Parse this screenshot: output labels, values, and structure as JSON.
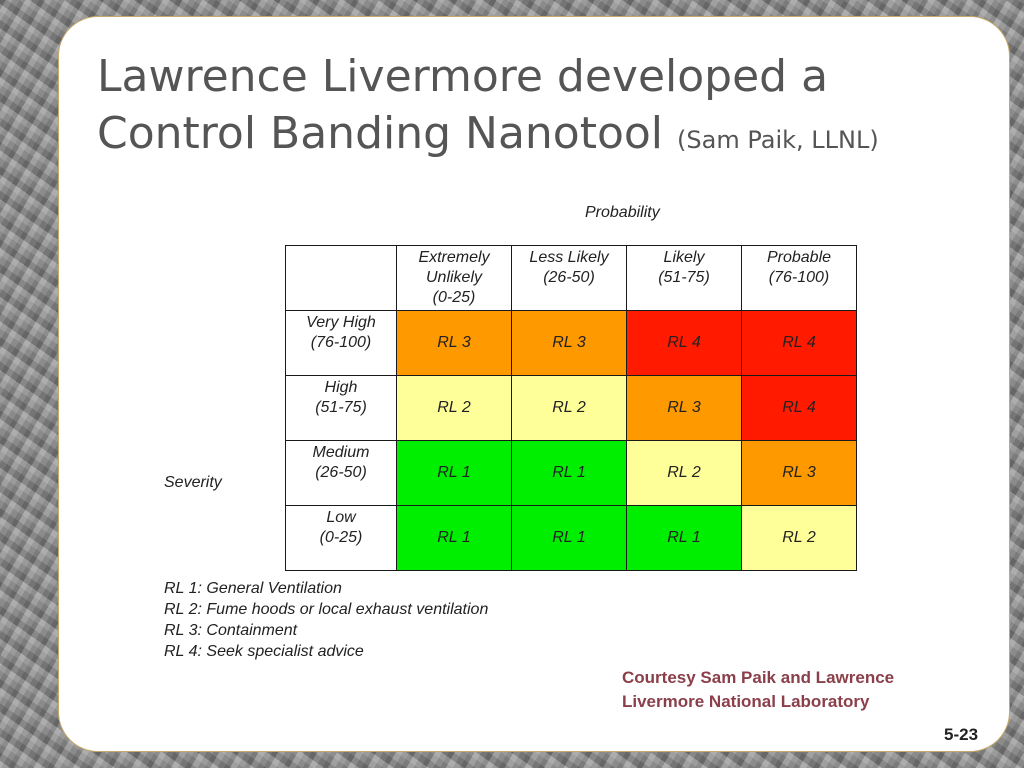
{
  "slide": {
    "title_main": "Lawrence Livermore developed a Control Banding Nanotool",
    "title_sub": "(Sam Paik, LLNL)",
    "page_number": "5-23",
    "courtesy": "Courtesy Sam Paik and Lawrence Livermore National Laboratory"
  },
  "matrix": {
    "probability_label": "Probability",
    "severity_label": "Severity",
    "columns": [
      {
        "line1": "Extremely",
        "line2": "Unlikely",
        "line3": "(0-25)"
      },
      {
        "line1": "Less Likely",
        "line2": "(26-50)",
        "line3": ""
      },
      {
        "line1": "Likely",
        "line2": "(51-75)",
        "line3": ""
      },
      {
        "line1": "Probable",
        "line2": "(76-100)",
        "line3": ""
      }
    ],
    "rows": [
      {
        "line1": "Very High",
        "line2": "(76-100)",
        "cells": [
          {
            "text": "RL 3",
            "level": 3
          },
          {
            "text": "RL 3",
            "level": 3
          },
          {
            "text": "RL 4",
            "level": 4
          },
          {
            "text": "RL 4",
            "level": 4
          }
        ]
      },
      {
        "line1": "High",
        "line2": "(51-75)",
        "cells": [
          {
            "text": "RL 2",
            "level": 2
          },
          {
            "text": "RL 2",
            "level": 2
          },
          {
            "text": "RL 3",
            "level": 3
          },
          {
            "text": "RL 4",
            "level": 4
          }
        ]
      },
      {
        "line1": "Medium",
        "line2": "(26-50)",
        "cells": [
          {
            "text": "RL 1",
            "level": 1
          },
          {
            "text": "RL 1",
            "level": 1
          },
          {
            "text": "RL 2",
            "level": 2
          },
          {
            "text": "RL 3",
            "level": 3
          }
        ]
      },
      {
        "line1": "Low",
        "line2": "(0-25)",
        "cells": [
          {
            "text": "RL 1",
            "level": 1
          },
          {
            "text": "RL 1",
            "level": 1
          },
          {
            "text": "RL 1",
            "level": 1
          },
          {
            "text": "RL 2",
            "level": 2
          }
        ]
      }
    ],
    "level_colors": {
      "1": "#00ee00",
      "2": "#ffff99",
      "3": "#ff9900",
      "4": "#ff1a00"
    }
  },
  "legend": [
    "RL 1: General Ventilation",
    "RL 2: Fume hoods or local exhaust ventilation",
    "RL 3: Containment",
    "RL 4: Seek specialist advice"
  ]
}
